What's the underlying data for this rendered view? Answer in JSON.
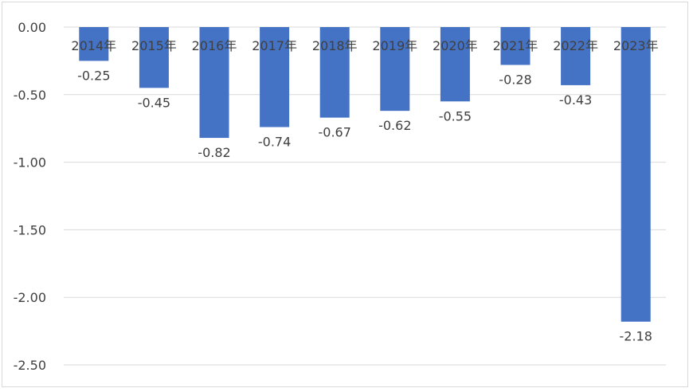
{
  "chart_data": {
    "type": "bar",
    "categories": [
      "2014年",
      "2015年",
      "2016年",
      "2017年",
      "2018年",
      "2019年",
      "2020年",
      "2021年",
      "2022年",
      "2023年"
    ],
    "values": [
      -0.25,
      -0.45,
      -0.82,
      -0.74,
      -0.67,
      -0.62,
      -0.55,
      -0.28,
      -0.43,
      -2.18
    ],
    "data_labels": [
      "-0.25",
      "-0.45",
      "-0.82",
      "-0.74",
      "-0.67",
      "-0.62",
      "-0.55",
      "-0.28",
      "-0.43",
      "-2.18"
    ],
    "y_ticks": [
      "0.00",
      "-0.50",
      "-1.00",
      "-1.50",
      "-2.00",
      "-2.50"
    ],
    "y_tick_values": [
      0,
      -0.5,
      -1.0,
      -1.5,
      -2.0,
      -2.5
    ],
    "ylim": [
      -2.5,
      0
    ],
    "grid": true,
    "legend": "none",
    "colors": {
      "bar": "#4472c4",
      "grid": "#d9d9d9",
      "text": "#404040"
    }
  }
}
